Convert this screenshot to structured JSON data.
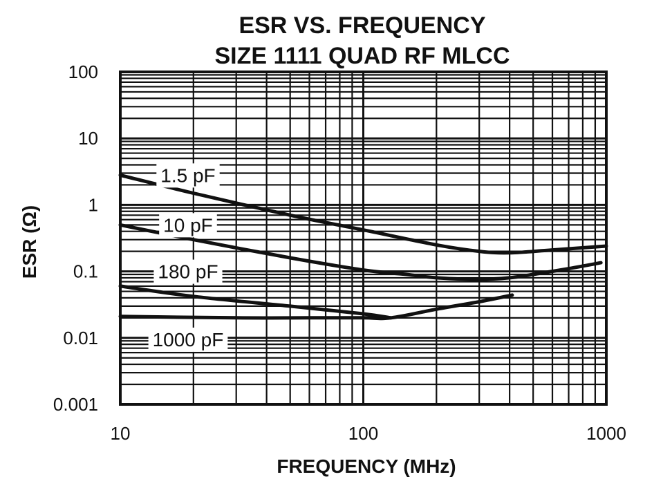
{
  "chart_data": {
    "type": "line",
    "title": "ESR VS. FREQUENCY",
    "subtitle": "SIZE 1111 QUAD RF MLCC",
    "xlabel": "FREQUENCY (MHz)",
    "ylabel": "ESR (Ω)",
    "xscale": "log",
    "yscale": "log",
    "xlim": [
      10,
      1000
    ],
    "ylim": [
      0.001,
      100
    ],
    "grid": true,
    "x_ticks": [
      {
        "value": 10,
        "label": "10"
      },
      {
        "value": 100,
        "label": "100"
      },
      {
        "value": 1000,
        "label": "1000"
      }
    ],
    "y_ticks": [
      {
        "value": 100,
        "label": "100"
      },
      {
        "value": 10,
        "label": "10"
      },
      {
        "value": 1,
        "label": "1"
      },
      {
        "value": 0.1,
        "label": "0.1"
      },
      {
        "value": 0.01,
        "label": "0.01"
      },
      {
        "value": 0.001,
        "label": "0.001"
      }
    ],
    "series": [
      {
        "name": "1.5 pF",
        "label_at": {
          "x": 19,
          "y": 2.8
        },
        "points": [
          [
            10,
            2.8
          ],
          [
            20,
            1.5
          ],
          [
            50,
            0.7
          ],
          [
            100,
            0.42
          ],
          [
            200,
            0.25
          ],
          [
            300,
            0.2
          ],
          [
            400,
            0.19
          ],
          [
            600,
            0.21
          ],
          [
            1000,
            0.24
          ]
        ]
      },
      {
        "name": "10 pF",
        "label_at": {
          "x": 19,
          "y": 0.5
        },
        "points": [
          [
            10,
            0.5
          ],
          [
            20,
            0.3
          ],
          [
            50,
            0.16
          ],
          [
            100,
            0.105
          ],
          [
            150,
            0.09
          ],
          [
            200,
            0.08
          ],
          [
            300,
            0.076
          ],
          [
            400,
            0.08
          ],
          [
            500,
            0.09
          ],
          [
            700,
            0.11
          ],
          [
            950,
            0.135
          ]
        ]
      },
      {
        "name": "180 pF",
        "label_at": {
          "x": 19,
          "y": 0.1
        },
        "points": [
          [
            10,
            0.06
          ],
          [
            20,
            0.042
          ],
          [
            50,
            0.03
          ],
          [
            100,
            0.023
          ],
          [
            130,
            0.02
          ]
        ]
      },
      {
        "name": "1000 pF",
        "label_at": {
          "x": 19,
          "y": 0.0095
        },
        "points": [
          [
            10,
            0.021
          ],
          [
            30,
            0.02
          ],
          [
            60,
            0.02
          ],
          [
            100,
            0.02
          ],
          [
            130,
            0.02
          ],
          [
            200,
            0.027
          ],
          [
            300,
            0.035
          ],
          [
            410,
            0.044
          ]
        ]
      }
    ]
  }
}
